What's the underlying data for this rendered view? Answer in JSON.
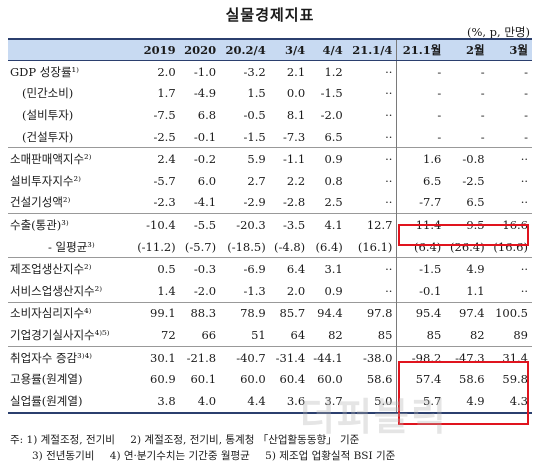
{
  "title": "실물경제지표",
  "unit": "(%, p, 만명)",
  "columns": [
    "2019",
    "2020",
    "20.2/4",
    "3/4",
    "4/4",
    "21.1/4",
    "21.1월",
    "2월",
    "3월"
  ],
  "rows": [
    {
      "label": "GDP 성장률¹⁾",
      "values": [
        "2.0",
        "-1.0",
        "-3.2",
        "2.1",
        "1.2",
        "··",
        "-",
        "-",
        "-"
      ]
    },
    {
      "label": "(민간소비)",
      "values": [
        "1.7",
        "-4.9",
        "1.5",
        "0.0",
        "-1.5",
        "··",
        "-",
        "-",
        "-"
      ]
    },
    {
      "label": "(설비투자)",
      "values": [
        "-7.5",
        "6.8",
        "-0.5",
        "8.1",
        "-2.0",
        "··",
        "-",
        "-",
        "-"
      ]
    },
    {
      "label": "(건설투자)",
      "values": [
        "-2.5",
        "-0.1",
        "-1.5",
        "-7.3",
        "6.5",
        "··",
        "-",
        "-",
        "-"
      ]
    },
    {
      "label": "소매판매액지수²⁾",
      "values": [
        "2.4",
        "-0.2",
        "5.9",
        "-1.1",
        "0.9",
        "··",
        "1.6",
        "-0.8",
        "··"
      ]
    },
    {
      "label": "설비투자지수²⁾",
      "values": [
        "-5.7",
        "6.0",
        "2.7",
        "2.2",
        "0.8",
        "··",
        "6.5",
        "-2.5",
        "··"
      ]
    },
    {
      "label": "건설기성액²⁾",
      "values": [
        "-2.3",
        "-4.1",
        "-2.9",
        "-2.8",
        "2.5",
        "··",
        "-7.7",
        "6.5",
        "··"
      ]
    },
    {
      "label": "수출(통관)³⁾",
      "values": [
        "-10.4",
        "-5.5",
        "-20.3",
        "-3.5",
        "4.1",
        "12.7",
        "11.4",
        "9.5",
        "16.6"
      ]
    },
    {
      "label": "- 일평균³⁾",
      "values": [
        "(-11.2)",
        "(-5.7)",
        "(-18.5)",
        "(-4.8)",
        "(6.4)",
        "(16.1)",
        "(6.4)",
        "(26.4)",
        "(16.6)"
      ]
    },
    {
      "label": "제조업생산지수²⁾",
      "values": [
        "0.5",
        "-0.3",
        "-6.9",
        "6.4",
        "3.1",
        "··",
        "-1.5",
        "4.9",
        "··"
      ]
    },
    {
      "label": "서비스업생산지수²⁾",
      "values": [
        "1.4",
        "-2.0",
        "-1.3",
        "2.0",
        "0.9",
        "··",
        "-0.1",
        "1.1",
        "··"
      ]
    },
    {
      "label": "소비자심리지수⁴⁾",
      "values": [
        "99.1",
        "88.3",
        "78.9",
        "85.7",
        "94.4",
        "97.8",
        "95.4",
        "97.4",
        "100.5"
      ]
    },
    {
      "label": "기업경기실사지수⁴⁾⁵⁾",
      "values": [
        "72",
        "66",
        "51",
        "64",
        "82",
        "85",
        "85",
        "82",
        "89"
      ]
    },
    {
      "label": "취업자수 증감³⁾⁴⁾",
      "values": [
        "30.1",
        "-21.8",
        "-40.7",
        "-31.4",
        "-44.1",
        "-38.0",
        "-98.2",
        "-47.3",
        "31.4"
      ]
    },
    {
      "label": "고용률(원계열)",
      "values": [
        "60.9",
        "60.1",
        "60.0",
        "60.4",
        "60.0",
        "58.6",
        "57.4",
        "58.6",
        "59.8"
      ]
    },
    {
      "label": "실업률(원계열)",
      "values": [
        "3.8",
        "4.0",
        "4.4",
        "3.6",
        "3.7",
        "5.0",
        "5.7",
        "4.9",
        "4.3"
      ]
    }
  ],
  "notes": {
    "line1": [
      "주: 1) 계절조정, 전기비",
      "2) 계절조정, 전기비, 통계청 「산업활동동향」 기준"
    ],
    "line2": [
      "3) 전년동기비",
      "4) 연·분기수치는 기간중 월평균",
      "5) 제조업 업황실적 BSI 기준"
    ]
  },
  "watermark": "더퍼블릭",
  "colors": {
    "header_bg": "#c8daf2",
    "rule": "#2b3f6e",
    "highlight": "#e0141e"
  }
}
